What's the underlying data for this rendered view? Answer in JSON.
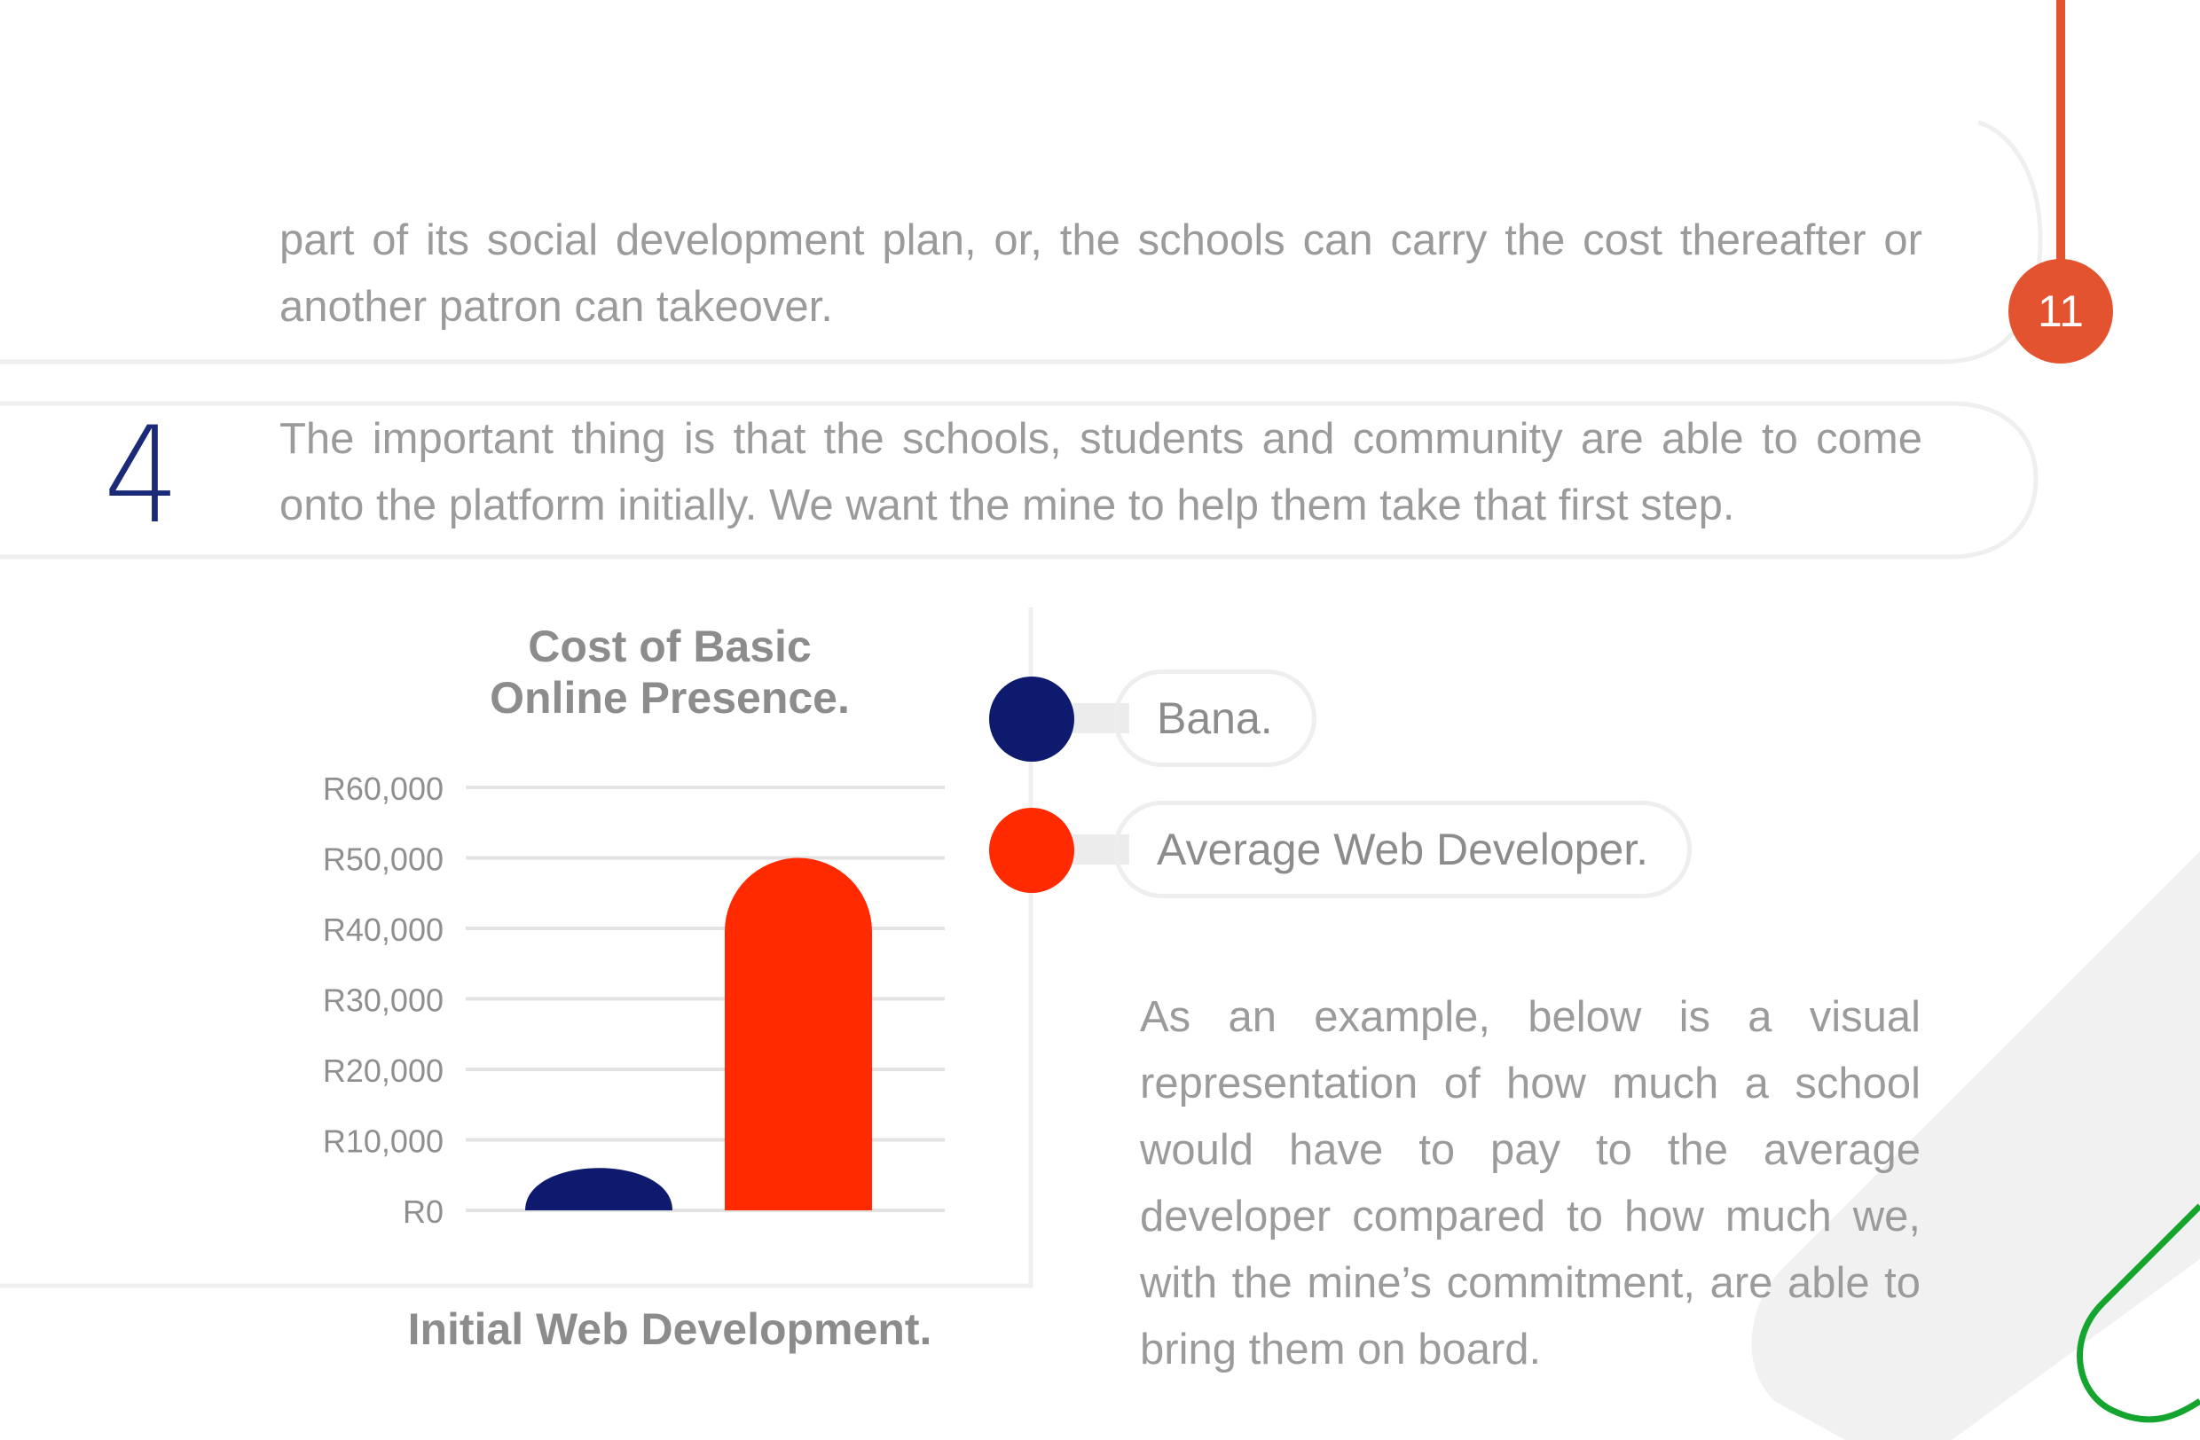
{
  "page_number": "11",
  "intro_paragraph": {
    "line1": "part of its social development plan, or, the schools can carry the cost thereafter or",
    "line2": "another patron can takeover."
  },
  "step": {
    "number": "4",
    "line1": "The important thing is that the schools, students and community are able to come",
    "line2": "onto the platform initially. We want the mine to help them take that first step."
  },
  "legend": [
    {
      "label": "Bana.",
      "color": "#0d1a6e"
    },
    {
      "label": "Average Web Developer.",
      "color": "#ff2a00"
    }
  ],
  "example_text": "As an example, below is a visual representation of how much a school would have to pay to the average developer compared to how much we, with the mine’s commitment, are able to bring them on board.",
  "chart_data": {
    "type": "bar",
    "title": "Cost of Basic Online Presence.",
    "title_lines": [
      "Cost of Basic",
      "Online Presence."
    ],
    "xlabel": "Initial Web Development.",
    "ylabel": "",
    "ylim": [
      0,
      60000
    ],
    "yticks": [
      "R0",
      "R10,000",
      "R20,000",
      "R30,000",
      "R40,000",
      "R50,000",
      "R60,000"
    ],
    "grid": true,
    "legend_position": "right",
    "series": [
      {
        "name": "Bana.",
        "values": [
          8000
        ],
        "color": "#0d1a6e"
      },
      {
        "name": "Average Web Developer.",
        "values": [
          50000
        ],
        "color": "#ff2a00"
      }
    ]
  }
}
